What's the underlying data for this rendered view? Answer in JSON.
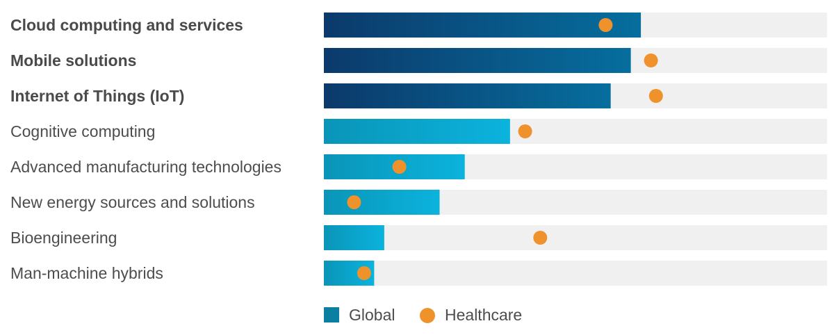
{
  "chart_data": {
    "type": "bar",
    "orientation": "horizontal",
    "categories": [
      "Cloud computing and services",
      "Mobile solutions",
      "Internet of Things (IoT)",
      "Cognitive computing",
      "Advanced manufacturing technologies",
      "New energy sources and solutions",
      "Bioengineering",
      "Man-machine hybrids"
    ],
    "emphasized_categories": [
      0,
      1,
      2
    ],
    "xlim": [
      0,
      100
    ],
    "grid": false,
    "series": [
      {
        "name": "Global",
        "values": [
          63,
          61,
          57,
          37,
          28,
          23,
          12,
          10
        ]
      },
      {
        "name": "Healthcare",
        "values": [
          56,
          65,
          66,
          40,
          15,
          6,
          43,
          8
        ]
      }
    ],
    "legend": {
      "placement": "bottom",
      "items": [
        {
          "label": "Global",
          "marker": "square"
        },
        {
          "label": "Healthcare",
          "marker": "circle"
        }
      ]
    },
    "colors": {
      "emphasis_bar_start": "#0b3a6b",
      "emphasis_bar_end": "#066e9e",
      "bar_start": "#0a95b8",
      "bar_end": "#0bb3dd",
      "track": "#f0f0f0",
      "healthcare_marker": "#f0922b",
      "legend_global": "#0a7fa0"
    }
  }
}
